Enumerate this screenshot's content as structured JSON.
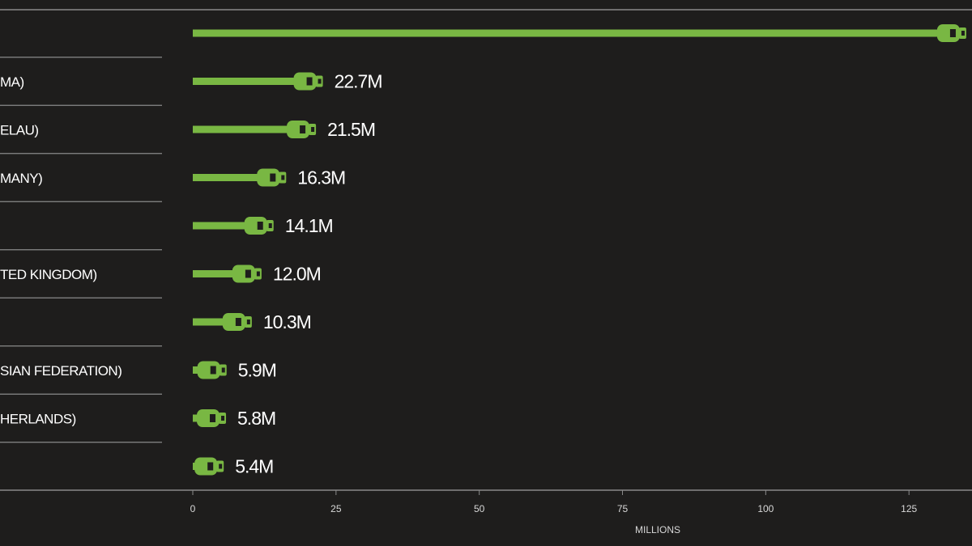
{
  "chart_data": {
    "type": "bar",
    "orientation": "horizontal",
    "categories": [
      null,
      "MA)",
      "ELAU)",
      "MANY)",
      null,
      "TED KINGDOM)",
      null,
      "SIAN FEDERATION)",
      "HERLANDS)",
      null
    ],
    "values": [
      135,
      22.7,
      21.5,
      16.3,
      14.1,
      12.0,
      10.3,
      5.9,
      5.8,
      5.4
    ],
    "value_labels": [
      null,
      "22.7M",
      "21.5M",
      "16.3M",
      "14.1M",
      "12.0M",
      "10.3M",
      "5.9M",
      "5.8M",
      "5.4M"
    ],
    "color": "#79b743",
    "xlim": [
      0,
      136
    ],
    "xticks": [
      0,
      25,
      50,
      75,
      100,
      125
    ],
    "x_label": "MILLIONS"
  }
}
